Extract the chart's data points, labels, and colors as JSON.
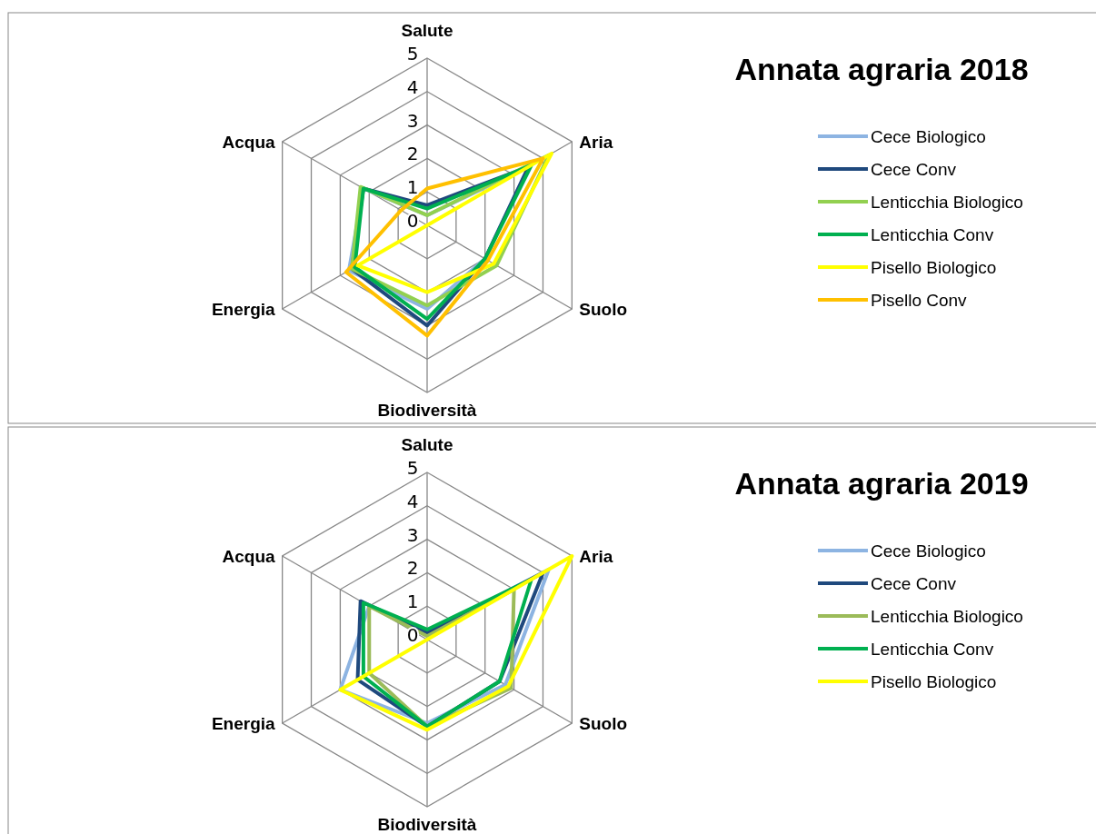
{
  "chart_data": [
    {
      "type": "radar",
      "title": "Annata agraria 2018",
      "categories": [
        "Salute",
        "Aria",
        "Suolo",
        "Biodiversità",
        "Energia",
        "Acqua"
      ],
      "ylim": [
        0,
        5
      ],
      "yticks": [
        0,
        1,
        2,
        3,
        4,
        5
      ],
      "grid": true,
      "legend": "right",
      "series": [
        {
          "name": "Cece  Biologico",
          "color": "#8db4e2",
          "values": [
            0.3,
            3.5,
            2.0,
            2.5,
            2.7,
            2.2
          ]
        },
        {
          "name": "Cece  Conv",
          "color": "#1f497d",
          "values": [
            0.6,
            3.5,
            2.0,
            3.0,
            2.6,
            2.2
          ]
        },
        {
          "name": "Lenticchia Biologico",
          "color": "#92d050",
          "values": [
            0.3,
            4.2,
            2.4,
            2.4,
            2.6,
            2.3
          ]
        },
        {
          "name": "Lenticchia Conv",
          "color": "#00b050",
          "values": [
            0.5,
            3.6,
            2.0,
            2.8,
            2.5,
            2.2
          ]
        },
        {
          "name": "Pisello Biologico",
          "color": "#ffff00",
          "values": [
            0,
            4.3,
            2.3,
            2.0,
            2.4,
            0
          ]
        },
        {
          "name": "Pisello Conv",
          "color": "#ffc000",
          "values": [
            1.1,
            4.0,
            2.1,
            3.3,
            2.8,
            0.9
          ]
        }
      ]
    },
    {
      "type": "radar",
      "title": "Annata agraria 2019",
      "categories": [
        "Salute",
        "Aria",
        "Suolo",
        "Biodiversità",
        "Energia",
        "Acqua"
      ],
      "ylim": [
        0,
        5
      ],
      "yticks": [
        0,
        1,
        2,
        3,
        4,
        5
      ],
      "grid": true,
      "legend": "right",
      "series": [
        {
          "name": "Cece  Biologico",
          "color": "#8db4e2",
          "values": [
            0.2,
            4.2,
            2.7,
            2.5,
            3.0,
            2.0
          ]
        },
        {
          "name": "Cece  Conv",
          "color": "#1f497d",
          "values": [
            0.2,
            4.0,
            2.5,
            2.6,
            2.4,
            2.3
          ]
        },
        {
          "name": "Lenticchia Biologico",
          "color": "#9bbb59",
          "values": [
            0.1,
            3.0,
            2.9,
            2.6,
            2.0,
            2.0
          ]
        },
        {
          "name": "Lenticchia Conv",
          "color": "#00b050",
          "values": [
            0.3,
            3.6,
            2.5,
            2.6,
            2.2,
            2.2
          ]
        },
        {
          "name": "Pisello Biologico",
          "color": "#ffff00",
          "values": [
            0,
            5.0,
            2.8,
            2.7,
            3.0,
            0
          ]
        }
      ]
    }
  ]
}
